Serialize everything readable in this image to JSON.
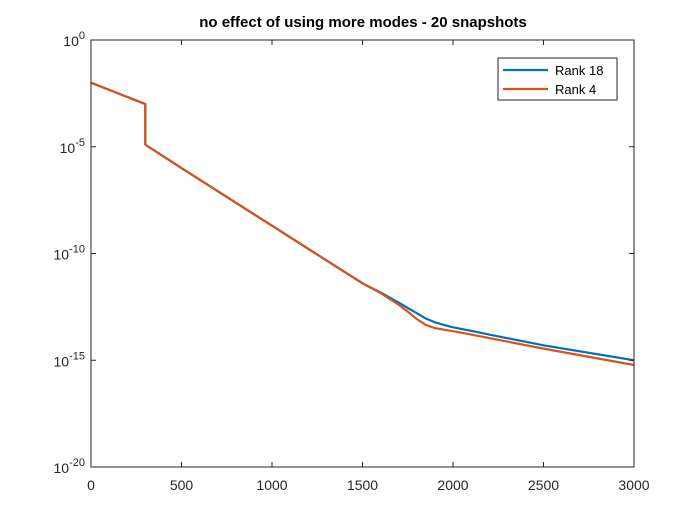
{
  "chart_data": {
    "type": "line",
    "title": "no effect of using more modes - 20 snapshots",
    "xlabel": "",
    "ylabel": "",
    "xlim": [
      0,
      3000
    ],
    "ylim": [
      1e-20,
      1
    ],
    "yscale": "log",
    "grid": false,
    "legend_position": "top-right",
    "x_ticks": [
      0,
      500,
      1000,
      1500,
      2000,
      2500,
      3000
    ],
    "x_tick_labels": [
      "0",
      "500",
      "1000",
      "1500",
      "2000",
      "2500",
      "3000"
    ],
    "y_ticks": [
      1,
      1e-05,
      1e-10,
      1e-15,
      1e-20
    ],
    "y_tick_labels": [
      {
        "base": "10",
        "exp": "0"
      },
      {
        "base": "10",
        "exp": "-5"
      },
      {
        "base": "10",
        "exp": "-10"
      },
      {
        "base": "10",
        "exp": "-15"
      },
      {
        "base": "10",
        "exp": "-20"
      }
    ],
    "series": [
      {
        "name": "Rank 18",
        "color": "#0072BD",
        "x": [
          0,
          300,
          300,
          310,
          500,
          1000,
          1500,
          1600,
          1700,
          1750,
          1800,
          1850,
          1900,
          1950,
          2000,
          2100,
          2200,
          2500,
          3000
        ],
        "y": [
          0.01,
          0.001,
          1.3e-05,
          1.1e-05,
          1e-06,
          2e-09,
          4e-12,
          1.5e-12,
          5e-13,
          2.8e-13,
          1.6e-13,
          9e-14,
          6e-14,
          4.5e-14,
          3.5e-14,
          2.4e-14,
          1.6e-14,
          5e-15,
          1e-15
        ]
      },
      {
        "name": "Rank 4",
        "color": "#D95319",
        "x": [
          0,
          300,
          300,
          310,
          500,
          1000,
          1500,
          1600,
          1700,
          1750,
          1800,
          1850,
          1900,
          1950,
          2000,
          2100,
          2200,
          2500,
          3000
        ],
        "y": [
          0.01,
          0.001,
          1.3e-05,
          1.1e-05,
          1e-06,
          2e-09,
          4e-12,
          1.4e-12,
          4e-13,
          1.9e-13,
          8.5e-14,
          4.5e-14,
          3.2e-14,
          2.7e-14,
          2.3e-14,
          1.6e-14,
          1.1e-14,
          3.5e-15,
          6e-16
        ]
      }
    ]
  }
}
